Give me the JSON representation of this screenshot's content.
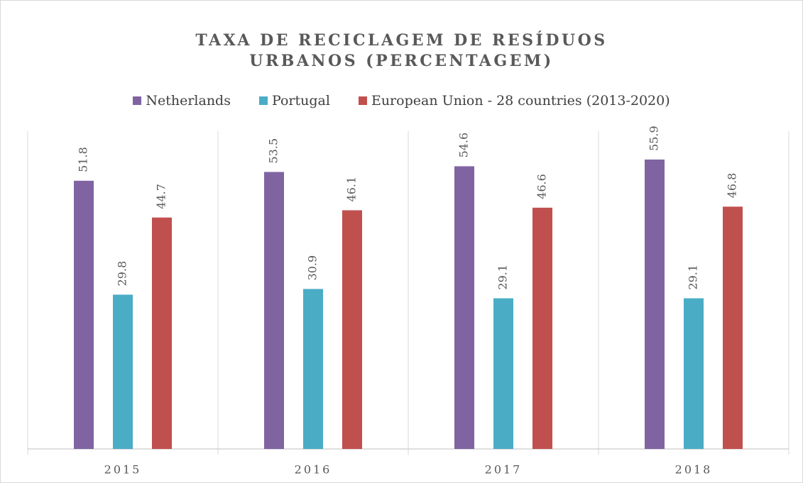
{
  "chart_data": {
    "type": "bar",
    "title": "TAXA DE RECICLAGEM DE RESÍDUOS URBANOS (PERCENTAGEM)",
    "categories": [
      "2015",
      "2016",
      "2017",
      "2018"
    ],
    "series": [
      {
        "name": "Netherlands",
        "color": "#8064a2",
        "values": [
          51.8,
          53.5,
          54.6,
          55.9
        ]
      },
      {
        "name": "Portugal",
        "color": "#4bacc6",
        "values": [
          29.8,
          30.9,
          29.1,
          29.1
        ]
      },
      {
        "name": "European Union - 28 countries (2013-2020)",
        "color": "#c0504d",
        "values": [
          44.7,
          46.1,
          46.6,
          46.8
        ]
      }
    ],
    "ylim": [
      0,
      60
    ],
    "legend": "top"
  }
}
